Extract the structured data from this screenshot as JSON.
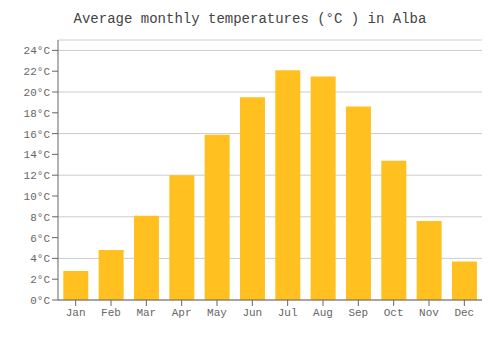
{
  "chart_data": {
    "type": "bar",
    "title": "Average monthly temperatures (°C ) in Alba",
    "categories": [
      "Jan",
      "Feb",
      "Mar",
      "Apr",
      "May",
      "Jun",
      "Jul",
      "Aug",
      "Sep",
      "Oct",
      "Nov",
      "Dec"
    ],
    "values": [
      2.8,
      4.8,
      8.1,
      12.0,
      15.9,
      19.5,
      22.1,
      21.5,
      18.6,
      13.4,
      7.6,
      3.7
    ],
    "color": "#FFC020",
    "ylim": [
      0,
      25
    ],
    "yticks": [
      {
        "value": 0,
        "label": "0°C"
      },
      {
        "value": 2,
        "label": "2°C"
      },
      {
        "value": 4,
        "label": "4°C"
      },
      {
        "value": 6,
        "label": "6°C"
      },
      {
        "value": 8,
        "label": "8°C"
      },
      {
        "value": 10,
        "label": "10°C"
      },
      {
        "value": 12,
        "label": "12°C"
      },
      {
        "value": 14,
        "label": "14°C"
      },
      {
        "value": 16,
        "label": "16°C"
      },
      {
        "value": 18,
        "label": "18°C"
      },
      {
        "value": 20,
        "label": "20°C"
      },
      {
        "value": 22,
        "label": "22°C"
      },
      {
        "value": 24,
        "label": "24°C"
      }
    ],
    "grid": true
  }
}
